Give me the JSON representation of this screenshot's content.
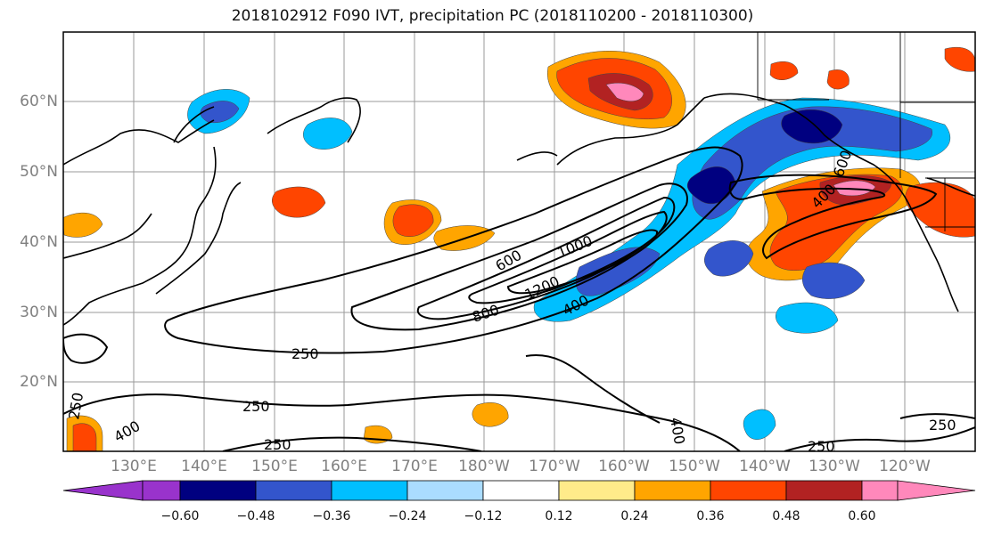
{
  "title": "2018102912 F090 IVT, precipitation PC (2018110200 - 2018110300)",
  "map": {
    "lat_labels": [
      "60°N",
      "50°N",
      "40°N",
      "30°N",
      "20°N"
    ],
    "lon_labels": [
      "130°E",
      "140°E",
      "150°E",
      "160°E",
      "170°E",
      "180°W",
      "170°W",
      "160°W",
      "150°W",
      "140°W",
      "130°W",
      "120°W"
    ],
    "contour_labels": [
      "250",
      "250",
      "250",
      "250",
      "250",
      "400",
      "400",
      "400",
      "600",
      "800",
      "1000",
      "1200",
      "600",
      "400",
      "250"
    ],
    "gridlines": true
  },
  "colorbar": {
    "tick_labels": [
      "−0.60",
      "−0.48",
      "−0.36",
      "−0.24",
      "−0.12",
      "0.12",
      "0.24",
      "0.36",
      "0.48",
      "0.60"
    ],
    "colors": [
      "#9933cc",
      "#000080",
      "#3355cc",
      "#00bfff",
      "#aadcff",
      "#ffffff",
      "#ffeb8a",
      "#ffa500",
      "#ff4500",
      "#b22222",
      "#ff88bb",
      "#ff88bb"
    ]
  },
  "palette": {
    "neg_strong": "#000080",
    "neg_mid": "#3355cc",
    "neg_light": "#00bfff",
    "pos_light": "#ffeb8a",
    "pos_mid": "#ffa500",
    "pos_strong": "#ff4500",
    "pos_dark": "#b22222",
    "pos_pink": "#ff88bb"
  }
}
